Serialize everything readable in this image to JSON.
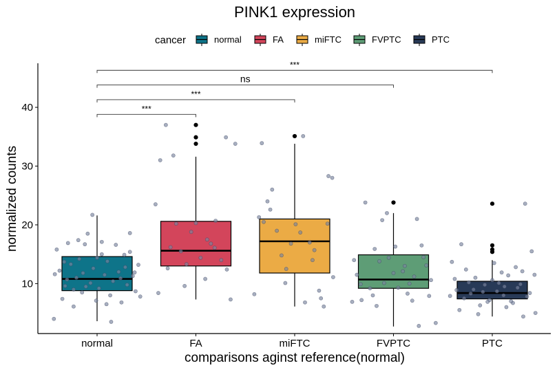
{
  "chart_data": {
    "type": "boxplot",
    "title": "PINK1 expression",
    "xlabel": "comparisons aginst reference(normal)",
    "ylabel": "normalized counts",
    "ylim": [
      1.5,
      47.5
    ],
    "yticks": [
      10,
      20,
      30,
      40
    ],
    "legend": {
      "title": "cancer",
      "position": "top"
    },
    "categories": [
      "normal",
      "FA",
      "miFTC",
      "FVPTC",
      "PTC"
    ],
    "series": [
      {
        "name": "normal",
        "color": "#0e7489",
        "box": {
          "q1": 8.8,
          "median": 10.8,
          "q3": 14.6,
          "whisker_low": 3.6,
          "whisker_high": 21.6
        },
        "outliers": []
      },
      {
        "name": "FA",
        "color": "#d3455b",
        "box": {
          "q1": 13.0,
          "median": 15.6,
          "q3": 20.6,
          "whisker_low": 7.3,
          "whisker_high": 31.6
        },
        "outliers": [
          33.8,
          34.9,
          37.0
        ]
      },
      {
        "name": "miFTC",
        "color": "#ebab45",
        "box": {
          "q1": 11.8,
          "median": 17.2,
          "q3": 21.0,
          "whisker_low": 6.1,
          "whisker_high": 33.8
        },
        "outliers": [
          35.1
        ]
      },
      {
        "name": "FVPTC",
        "color": "#5e9d76",
        "box": {
          "q1": 9.2,
          "median": 10.7,
          "q3": 14.9,
          "whisker_low": 2.7,
          "whisker_high": 22.0
        },
        "outliers": [
          23.8
        ]
      },
      {
        "name": "PTC",
        "color": "#283a57",
        "box": {
          "q1": 7.4,
          "median": 8.4,
          "q3": 10.4,
          "whisker_low": 4.4,
          "whisker_high": 14.0
        },
        "outliers": [
          15.4,
          15.8,
          16.5,
          23.6
        ]
      }
    ],
    "jitter_points": [
      [
        [
          -0.46,
          4.0
        ],
        [
          -0.43,
          15.8
        ],
        [
          -0.4,
          12.2
        ],
        [
          -0.37,
          7.4
        ],
        [
          -0.34,
          9.6
        ],
        [
          -0.31,
          16.9
        ],
        [
          -0.28,
          13.3
        ],
        [
          -0.25,
          6.1
        ],
        [
          -0.22,
          11.0
        ],
        [
          -0.19,
          14.2
        ],
        [
          -0.16,
          8.5
        ],
        [
          -0.13,
          16.7
        ],
        [
          -0.1,
          18.5
        ],
        [
          -0.07,
          10.1
        ],
        [
          -0.04,
          12.6
        ],
        [
          -0.01,
          7.1
        ],
        [
          0.02,
          9.2
        ],
        [
          0.05,
          15.0
        ],
        [
          0.08,
          11.5
        ],
        [
          0.11,
          13.8
        ],
        [
          0.14,
          8.0
        ],
        [
          0.17,
          10.4
        ],
        [
          0.2,
          16.6
        ],
        [
          0.23,
          12.0
        ],
        [
          0.26,
          6.8
        ],
        [
          0.29,
          14.9
        ],
        [
          0.32,
          9.8
        ],
        [
          0.35,
          18.6
        ],
        [
          0.38,
          11.3
        ],
        [
          0.41,
          8.7
        ],
        [
          0.44,
          13.2
        ],
        [
          0.46,
          7.8
        ],
        [
          -0.35,
          13.7
        ],
        [
          -0.15,
          11.8
        ],
        [
          0.05,
          17.1
        ],
        [
          0.25,
          10.9
        ],
        [
          -0.45,
          11.6
        ],
        [
          0.15,
          3.5
        ],
        [
          -0.05,
          21.7
        ],
        [
          0.35,
          15.4
        ],
        [
          -0.25,
          9.0
        ],
        [
          0.3,
          12.8
        ],
        [
          -0.2,
          17.4
        ],
        [
          0.1,
          6.5
        ],
        [
          -0.32,
          10.7
        ],
        [
          0.4,
          11.9
        ],
        [
          0.0,
          14.4
        ],
        [
          -0.12,
          9.5
        ]
      ],
      [
        [
          -0.43,
          23.5
        ],
        [
          -0.38,
          31.0
        ],
        [
          -0.32,
          37.0
        ],
        [
          -0.27,
          16.2
        ],
        [
          -0.21,
          20.2
        ],
        [
          -0.16,
          15.5
        ],
        [
          -0.1,
          13.3
        ],
        [
          -0.05,
          18.8
        ],
        [
          0.0,
          20.3
        ],
        [
          0.05,
          14.4
        ],
        [
          0.1,
          10.8
        ],
        [
          0.16,
          16.8
        ],
        [
          0.21,
          20.7
        ],
        [
          0.27,
          14.0
        ],
        [
          0.32,
          34.9
        ],
        [
          0.37,
          7.3
        ],
        [
          0.42,
          33.8
        ],
        [
          -0.4,
          8.4
        ],
        [
          -0.3,
          12.6
        ],
        [
          0.2,
          16.1
        ],
        [
          -0.24,
          31.8
        ],
        [
          -0.12,
          9.6
        ],
        [
          0.12,
          17.5
        ],
        [
          0.33,
          12.4
        ]
      ],
      [
        [
          -0.43,
          8.2
        ],
        [
          -0.38,
          21.3
        ],
        [
          -0.33,
          20.5
        ],
        [
          -0.29,
          24.0
        ],
        [
          -0.24,
          26.0
        ],
        [
          -0.19,
          19.0
        ],
        [
          -0.14,
          14.8
        ],
        [
          -0.09,
          12.5
        ],
        [
          -0.04,
          16.8
        ],
        [
          0.01,
          20.1
        ],
        [
          0.06,
          18.7
        ],
        [
          0.11,
          6.8
        ],
        [
          0.16,
          17.0
        ],
        [
          0.21,
          15.7
        ],
        [
          0.26,
          8.8
        ],
        [
          0.31,
          6.1
        ],
        [
          0.36,
          28.3
        ],
        [
          0.41,
          11.1
        ],
        [
          -0.35,
          33.9
        ],
        [
          0.4,
          28.0
        ],
        [
          0.19,
          14.0
        ],
        [
          -0.26,
          22.6
        ],
        [
          0.09,
          35.1
        ],
        [
          0.28,
          7.5
        ],
        [
          0.35,
          20.2
        ],
        [
          -0.1,
          10.1
        ]
      ],
      [
        [
          -0.44,
          6.9
        ],
        [
          -0.39,
          11.5
        ],
        [
          -0.34,
          7.2
        ],
        [
          -0.3,
          23.8
        ],
        [
          -0.25,
          9.2
        ],
        [
          -0.2,
          15.9
        ],
        [
          -0.15,
          13.8
        ],
        [
          -0.1,
          10.1
        ],
        [
          -0.05,
          14.4
        ],
        [
          0.0,
          11.8
        ],
        [
          0.05,
          9.3
        ],
        [
          0.1,
          12.1
        ],
        [
          0.15,
          8.3
        ],
        [
          0.2,
          7.1
        ],
        [
          0.25,
          21.0
        ],
        [
          0.3,
          16.5
        ],
        [
          0.35,
          13.1
        ],
        [
          0.4,
          10.6
        ],
        [
          0.45,
          3.3
        ],
        [
          -0.42,
          14.0
        ],
        [
          -0.22,
          8.0
        ],
        [
          0.02,
          16.3
        ],
        [
          0.22,
          11.2
        ],
        [
          -0.12,
          20.8
        ],
        [
          0.12,
          13.0
        ],
        [
          0.27,
          2.8
        ],
        [
          -0.35,
          9.9
        ],
        [
          0.38,
          7.9
        ],
        [
          -0.07,
          22.0
        ],
        [
          0.17,
          10.0
        ],
        [
          -0.18,
          6.2
        ],
        [
          0.32,
          14.5
        ]
      ],
      [
        [
          -0.43,
          13.7
        ],
        [
          -0.38,
          8.9
        ],
        [
          -0.33,
          16.7
        ],
        [
          -0.28,
          12.4
        ],
        [
          -0.23,
          8.3
        ],
        [
          -0.18,
          11.0
        ],
        [
          -0.13,
          6.3
        ],
        [
          -0.08,
          9.8
        ],
        [
          -0.03,
          7.2
        ],
        [
          0.02,
          13.5
        ],
        [
          0.07,
          10.1
        ],
        [
          0.12,
          8.0
        ],
        [
          0.17,
          11.4
        ],
        [
          0.22,
          6.7
        ],
        [
          0.27,
          9.3
        ],
        [
          0.32,
          12.1
        ],
        [
          0.37,
          7.8
        ],
        [
          0.42,
          15.5
        ],
        [
          0.46,
          5.0
        ],
        [
          -0.4,
          10.8
        ],
        [
          -0.3,
          7.5
        ],
        [
          -0.2,
          9.0
        ],
        [
          -0.1,
          8.6
        ],
        [
          0.0,
          10.6
        ],
        [
          0.1,
          11.9
        ],
        [
          0.2,
          7.0
        ],
        [
          0.3,
          9.9
        ],
        [
          0.4,
          8.4
        ],
        [
          -0.35,
          5.5
        ],
        [
          0.15,
          6.0
        ],
        [
          0.35,
          23.6
        ],
        [
          -0.15,
          4.8
        ],
        [
          0.25,
          12.8
        ],
        [
          -0.25,
          10.2
        ],
        [
          0.05,
          8.7
        ],
        [
          0.45,
          11.5
        ],
        [
          -0.05,
          6.9
        ],
        [
          0.33,
          4.4
        ],
        [
          -0.45,
          7.9
        ],
        [
          0.13,
          9.5
        ]
      ]
    ],
    "comparisons": [
      {
        "from": "normal",
        "to": "FA",
        "label": "***",
        "y": 38.8
      },
      {
        "from": "normal",
        "to": "miFTC",
        "label": "***",
        "y": 41.3
      },
      {
        "from": "normal",
        "to": "FVPTC",
        "label": "ns",
        "y": 43.8
      },
      {
        "from": "normal",
        "to": "PTC",
        "label": "***",
        "y": 46.3
      }
    ]
  }
}
